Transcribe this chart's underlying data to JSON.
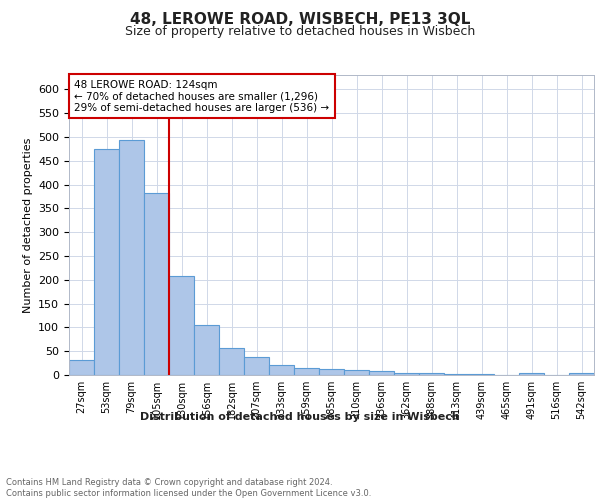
{
  "title": "48, LEROWE ROAD, WISBECH, PE13 3QL",
  "subtitle": "Size of property relative to detached houses in Wisbech",
  "xlabel": "Distribution of detached houses by size in Wisbech",
  "ylabel": "Number of detached properties",
  "categories": [
    "27sqm",
    "53sqm",
    "79sqm",
    "105sqm",
    "130sqm",
    "156sqm",
    "182sqm",
    "207sqm",
    "233sqm",
    "259sqm",
    "285sqm",
    "310sqm",
    "336sqm",
    "362sqm",
    "388sqm",
    "413sqm",
    "439sqm",
    "465sqm",
    "491sqm",
    "516sqm",
    "542sqm"
  ],
  "values": [
    32,
    474,
    493,
    383,
    208,
    104,
    56,
    37,
    21,
    14,
    13,
    10,
    8,
    4,
    4,
    3,
    2,
    1,
    5,
    1,
    5
  ],
  "bar_color": "#aec6e8",
  "bar_edge_color": "#5b9bd5",
  "vline_color": "#cc0000",
  "annotation_lines": [
    "48 LEROWE ROAD: 124sqm",
    "← 70% of detached houses are smaller (1,296)",
    "29% of semi-detached houses are larger (536) →"
  ],
  "annotation_box_edgecolor": "#cc0000",
  "footer_text": "Contains HM Land Registry data © Crown copyright and database right 2024.\nContains public sector information licensed under the Open Government Licence v3.0.",
  "ylim": [
    0,
    630
  ],
  "yticks": [
    0,
    50,
    100,
    150,
    200,
    250,
    300,
    350,
    400,
    450,
    500,
    550,
    600
  ],
  "background_color": "#ffffff",
  "grid_color": "#d0d8e8"
}
